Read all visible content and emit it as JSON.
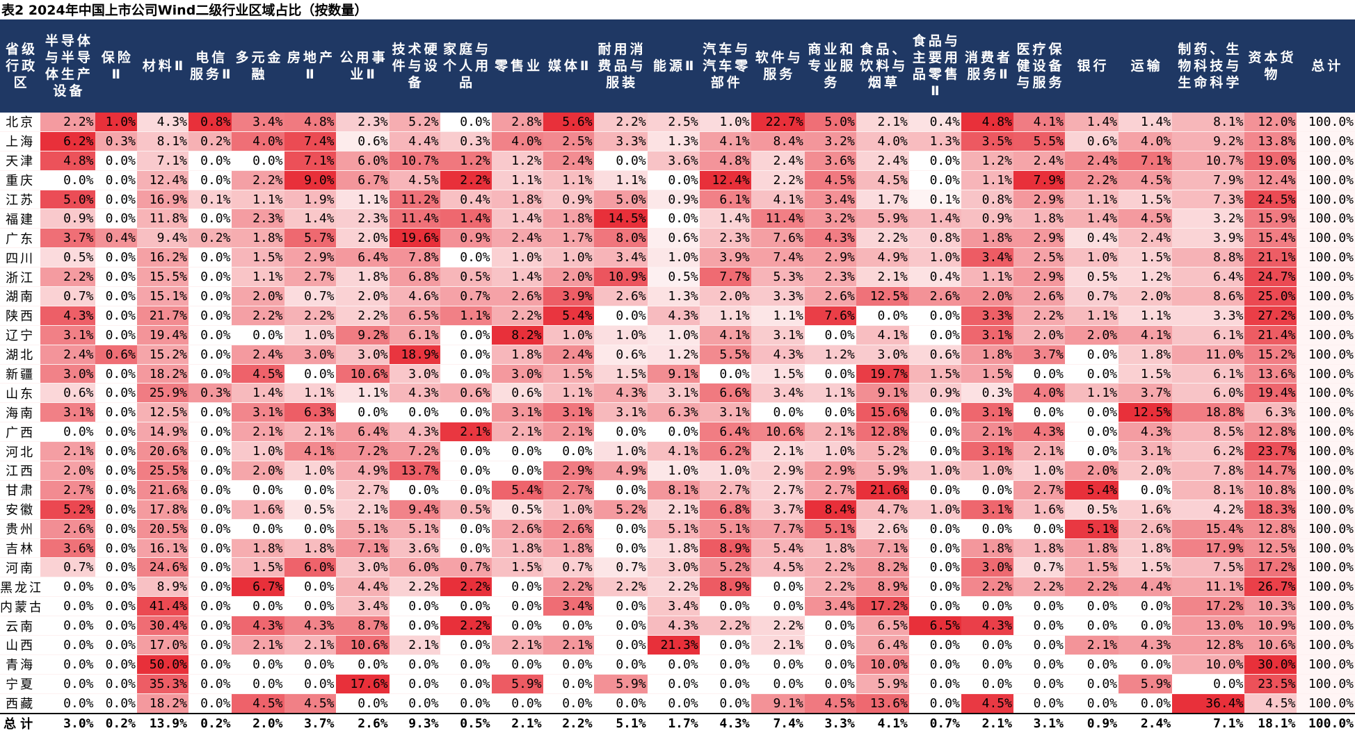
{
  "caption": "表2 2024年中国上市公司Wind二级行业区域占比（按数量）",
  "chart_data": {
    "type": "heatmap",
    "title": "表2 2024年中国上市公司Wind二级行业区域占比（按数量）",
    "row_header": "省级行政区",
    "columns": [
      "半导体与半导体生产设备",
      "保险Ⅱ",
      "材料Ⅱ",
      "电信服务Ⅱ",
      "多元金融",
      "房地产Ⅱ",
      "公用事业Ⅱ",
      "技术硬件与设备",
      "家庭与个人用品",
      "零售业",
      "媒体Ⅱ",
      "耐用消费品与服装",
      "能源Ⅱ",
      "汽车与汽车零部件",
      "软件与服务",
      "商业和专业服务",
      "食品、饮料与烟草",
      "食品与主要用品零售Ⅱ",
      "消费者服务Ⅱ",
      "医疗保健设备与服务",
      "银行",
      "运输",
      "制药、生物科技与生命科学",
      "资本货物",
      "总计"
    ],
    "rows": [
      {
        "name": "北京",
        "values": [
          2.2,
          1.0,
          4.3,
          0.8,
          3.4,
          4.8,
          2.3,
          5.2,
          0.0,
          2.8,
          5.6,
          2.2,
          2.5,
          1.0,
          22.7,
          5.0,
          2.1,
          0.4,
          4.8,
          4.1,
          1.4,
          1.4,
          8.1,
          12.0,
          100.0
        ]
      },
      {
        "name": "上海",
        "values": [
          6.2,
          0.3,
          8.1,
          0.2,
          4.0,
          7.4,
          0.6,
          4.4,
          0.3,
          4.0,
          2.5,
          3.3,
          1.3,
          4.1,
          8.4,
          3.2,
          4.0,
          1.3,
          3.5,
          5.5,
          0.6,
          4.0,
          9.2,
          13.8,
          100.0
        ]
      },
      {
        "name": "天津",
        "values": [
          4.8,
          0.0,
          7.1,
          0.0,
          0.0,
          7.1,
          6.0,
          10.7,
          1.2,
          1.2,
          2.4,
          0.0,
          3.6,
          4.8,
          2.4,
          3.6,
          2.4,
          0.0,
          1.2,
          2.4,
          2.4,
          7.1,
          10.7,
          19.0,
          100.0
        ]
      },
      {
        "name": "重庆",
        "values": [
          0.0,
          0.0,
          12.4,
          0.0,
          2.2,
          9.0,
          6.7,
          4.5,
          2.2,
          1.1,
          1.1,
          1.1,
          0.0,
          12.4,
          2.2,
          4.5,
          4.5,
          0.0,
          1.1,
          7.9,
          2.2,
          4.5,
          7.9,
          12.4,
          100.0
        ]
      },
      {
        "name": "江苏",
        "values": [
          5.0,
          0.0,
          16.9,
          0.1,
          1.1,
          1.9,
          1.1,
          11.2,
          0.4,
          1.8,
          0.9,
          5.0,
          0.9,
          6.1,
          4.1,
          3.4,
          1.7,
          0.1,
          0.8,
          2.9,
          1.1,
          1.5,
          7.3,
          24.5,
          100.0
        ]
      },
      {
        "name": "福建",
        "values": [
          0.9,
          0.0,
          11.8,
          0.0,
          2.3,
          1.4,
          2.3,
          11.4,
          1.4,
          1.4,
          1.8,
          14.5,
          0.0,
          1.4,
          11.4,
          3.2,
          5.9,
          1.4,
          0.9,
          1.8,
          1.4,
          4.5,
          3.2,
          15.9,
          100.0
        ]
      },
      {
        "name": "广东",
        "values": [
          3.7,
          0.4,
          9.4,
          0.2,
          1.8,
          5.7,
          2.0,
          19.6,
          0.9,
          2.4,
          1.7,
          8.0,
          0.6,
          2.3,
          7.6,
          4.3,
          2.2,
          0.8,
          1.8,
          2.9,
          0.4,
          2.4,
          3.9,
          15.4,
          100.0
        ]
      },
      {
        "name": "四川",
        "values": [
          0.5,
          0.0,
          16.2,
          0.0,
          1.5,
          2.9,
          6.4,
          7.8,
          0.0,
          1.0,
          1.0,
          3.4,
          1.0,
          3.9,
          7.4,
          2.9,
          4.9,
          1.0,
          3.4,
          2.5,
          1.0,
          1.5,
          8.8,
          21.1,
          100.0
        ]
      },
      {
        "name": "浙江",
        "values": [
          2.2,
          0.0,
          15.5,
          0.0,
          1.1,
          2.7,
          1.8,
          6.8,
          0.5,
          1.4,
          2.0,
          10.9,
          0.5,
          7.7,
          5.3,
          2.3,
          2.1,
          0.4,
          1.1,
          2.9,
          0.5,
          1.2,
          6.4,
          24.7,
          100.0
        ]
      },
      {
        "name": "湖南",
        "values": [
          0.7,
          0.0,
          15.1,
          0.0,
          2.0,
          0.7,
          2.0,
          4.6,
          0.7,
          2.6,
          3.9,
          2.6,
          1.3,
          2.0,
          3.3,
          2.6,
          12.5,
          2.6,
          2.0,
          2.6,
          0.7,
          2.0,
          8.6,
          25.0,
          100.0
        ]
      },
      {
        "name": "陕西",
        "values": [
          4.3,
          0.0,
          21.7,
          0.0,
          2.2,
          2.2,
          2.2,
          6.5,
          1.1,
          2.2,
          5.4,
          0.0,
          4.3,
          1.1,
          1.1,
          7.6,
          0.0,
          0.0,
          3.3,
          2.2,
          1.1,
          1.1,
          3.3,
          27.2,
          100.0
        ]
      },
      {
        "name": "辽宁",
        "values": [
          3.1,
          0.0,
          19.4,
          0.0,
          0.0,
          1.0,
          9.2,
          6.1,
          0.0,
          8.2,
          1.0,
          1.0,
          1.0,
          4.1,
          3.1,
          0.0,
          4.1,
          0.0,
          3.1,
          2.0,
          2.0,
          4.1,
          6.1,
          21.4,
          100.0
        ]
      },
      {
        "name": "湖北",
        "values": [
          2.4,
          0.6,
          15.2,
          0.0,
          2.4,
          3.0,
          3.0,
          18.9,
          0.0,
          1.8,
          2.4,
          0.6,
          1.2,
          5.5,
          4.3,
          1.2,
          3.0,
          0.6,
          1.8,
          3.7,
          0.0,
          1.8,
          11.0,
          15.2,
          100.0
        ]
      },
      {
        "name": "新疆",
        "values": [
          3.0,
          0.0,
          18.2,
          0.0,
          4.5,
          0.0,
          10.6,
          3.0,
          0.0,
          3.0,
          1.5,
          1.5,
          9.1,
          0.0,
          1.5,
          0.0,
          19.7,
          1.5,
          1.5,
          0.0,
          0.0,
          1.5,
          6.1,
          13.6,
          100.0
        ]
      },
      {
        "name": "山东",
        "values": [
          0.6,
          0.0,
          25.9,
          0.3,
          1.4,
          1.1,
          1.1,
          4.3,
          0.6,
          0.6,
          1.1,
          4.3,
          3.1,
          6.6,
          3.4,
          1.1,
          9.1,
          0.9,
          0.3,
          4.0,
          1.1,
          3.7,
          6.0,
          19.4,
          100.0
        ]
      },
      {
        "name": "海南",
        "values": [
          3.1,
          0.0,
          12.5,
          0.0,
          3.1,
          6.3,
          0.0,
          0.0,
          0.0,
          3.1,
          3.1,
          3.1,
          6.3,
          3.1,
          0.0,
          0.0,
          15.6,
          0.0,
          3.1,
          0.0,
          0.0,
          12.5,
          18.8,
          6.3,
          100.0
        ]
      },
      {
        "name": "广西",
        "values": [
          0.0,
          0.0,
          14.9,
          0.0,
          2.1,
          2.1,
          6.4,
          4.3,
          2.1,
          2.1,
          2.1,
          0.0,
          0.0,
          6.4,
          10.6,
          2.1,
          12.8,
          0.0,
          2.1,
          4.3,
          0.0,
          4.3,
          8.5,
          12.8,
          100.0
        ]
      },
      {
        "name": "河北",
        "values": [
          2.1,
          0.0,
          20.6,
          0.0,
          1.0,
          4.1,
          7.2,
          7.2,
          0.0,
          0.0,
          0.0,
          1.0,
          4.1,
          6.2,
          2.1,
          1.0,
          5.2,
          0.0,
          3.1,
          2.1,
          0.0,
          3.1,
          6.2,
          23.7,
          100.0
        ]
      },
      {
        "name": "江西",
        "values": [
          2.0,
          0.0,
          25.5,
          0.0,
          2.0,
          1.0,
          4.9,
          13.7,
          0.0,
          0.0,
          2.9,
          4.9,
          1.0,
          1.0,
          2.9,
          2.9,
          5.9,
          1.0,
          1.0,
          1.0,
          2.0,
          2.0,
          7.8,
          14.7,
          100.0
        ]
      },
      {
        "name": "甘肃",
        "values": [
          2.7,
          0.0,
          21.6,
          0.0,
          0.0,
          0.0,
          2.7,
          0.0,
          0.0,
          5.4,
          2.7,
          0.0,
          8.1,
          2.7,
          2.7,
          2.7,
          21.6,
          0.0,
          0.0,
          2.7,
          5.4,
          0.0,
          8.1,
          10.8,
          100.0
        ]
      },
      {
        "name": "安徽",
        "values": [
          5.2,
          0.0,
          17.8,
          0.0,
          1.6,
          0.5,
          2.1,
          9.4,
          0.5,
          0.5,
          1.0,
          5.2,
          2.1,
          6.8,
          3.7,
          8.4,
          4.7,
          1.0,
          3.1,
          1.6,
          0.5,
          1.6,
          4.2,
          18.3,
          100.0
        ]
      },
      {
        "name": "贵州",
        "values": [
          2.6,
          0.0,
          20.5,
          0.0,
          0.0,
          0.0,
          5.1,
          5.1,
          0.0,
          2.6,
          2.6,
          0.0,
          5.1,
          5.1,
          7.7,
          5.1,
          2.6,
          0.0,
          0.0,
          0.0,
          5.1,
          2.6,
          15.4,
          12.8,
          100.0
        ]
      },
      {
        "name": "吉林",
        "values": [
          3.6,
          0.0,
          16.1,
          0.0,
          1.8,
          1.8,
          7.1,
          3.6,
          0.0,
          1.8,
          1.8,
          0.0,
          1.8,
          8.9,
          5.4,
          1.8,
          7.1,
          0.0,
          1.8,
          1.8,
          1.8,
          1.8,
          17.9,
          12.5,
          100.0
        ]
      },
      {
        "name": "河南",
        "values": [
          0.7,
          0.0,
          24.6,
          0.0,
          1.5,
          6.0,
          3.0,
          6.0,
          0.7,
          1.5,
          0.7,
          0.7,
          3.0,
          5.2,
          4.5,
          2.2,
          8.2,
          0.0,
          3.0,
          0.7,
          1.5,
          1.5,
          7.5,
          17.2,
          100.0
        ]
      },
      {
        "name": "黑龙江",
        "values": [
          0.0,
          0.0,
          8.9,
          0.0,
          6.7,
          0.0,
          4.4,
          2.2,
          2.2,
          0.0,
          2.2,
          2.2,
          2.2,
          8.9,
          0.0,
          2.2,
          8.9,
          0.0,
          2.2,
          2.2,
          2.2,
          4.4,
          11.1,
          26.7,
          100.0
        ]
      },
      {
        "name": "内蒙古",
        "values": [
          0.0,
          0.0,
          41.4,
          0.0,
          0.0,
          0.0,
          3.4,
          0.0,
          0.0,
          0.0,
          3.4,
          0.0,
          3.4,
          0.0,
          0.0,
          3.4,
          17.2,
          0.0,
          0.0,
          0.0,
          0.0,
          0.0,
          17.2,
          10.3,
          100.0
        ]
      },
      {
        "name": "云南",
        "values": [
          0.0,
          0.0,
          30.4,
          0.0,
          4.3,
          4.3,
          8.7,
          0.0,
          2.2,
          0.0,
          0.0,
          0.0,
          4.3,
          2.2,
          2.2,
          0.0,
          6.5,
          6.5,
          4.3,
          0.0,
          0.0,
          0.0,
          13.0,
          10.9,
          100.0
        ]
      },
      {
        "name": "山西",
        "values": [
          0.0,
          0.0,
          17.0,
          0.0,
          2.1,
          2.1,
          10.6,
          2.1,
          0.0,
          2.1,
          2.1,
          0.0,
          21.3,
          0.0,
          2.1,
          0.0,
          6.4,
          0.0,
          0.0,
          0.0,
          2.1,
          4.3,
          12.8,
          10.6,
          100.0
        ]
      },
      {
        "name": "青海",
        "values": [
          0.0,
          0.0,
          50.0,
          0.0,
          0.0,
          0.0,
          0.0,
          0.0,
          0.0,
          0.0,
          0.0,
          0.0,
          0.0,
          0.0,
          0.0,
          0.0,
          10.0,
          0.0,
          0.0,
          0.0,
          0.0,
          0.0,
          10.0,
          30.0,
          100.0
        ]
      },
      {
        "name": "宁夏",
        "values": [
          0.0,
          0.0,
          35.3,
          0.0,
          0.0,
          0.0,
          17.6,
          0.0,
          0.0,
          5.9,
          0.0,
          5.9,
          0.0,
          0.0,
          0.0,
          0.0,
          5.9,
          0.0,
          0.0,
          0.0,
          0.0,
          5.9,
          0.0,
          23.5,
          100.0
        ]
      },
      {
        "name": "西藏",
        "values": [
          0.0,
          0.0,
          18.2,
          0.0,
          4.5,
          4.5,
          0.0,
          0.0,
          0.0,
          0.0,
          0.0,
          0.0,
          0.0,
          0.0,
          9.1,
          4.5,
          13.6,
          0.0,
          4.5,
          0.0,
          0.0,
          0.0,
          36.4,
          4.5,
          100.0
        ]
      }
    ],
    "total_row": {
      "name": "总计",
      "values": [
        3.0,
        0.2,
        13.9,
        0.2,
        2.0,
        3.7,
        2.6,
        9.3,
        0.5,
        2.1,
        2.2,
        5.1,
        1.7,
        4.3,
        7.4,
        3.3,
        4.1,
        0.7,
        2.1,
        3.1,
        0.9,
        2.4,
        7.1,
        18.1,
        100.0
      ]
    },
    "unit": "%",
    "colors": {
      "header_bg": "#1f3864",
      "low": "#ffffff",
      "high": "#e8303a"
    }
  }
}
